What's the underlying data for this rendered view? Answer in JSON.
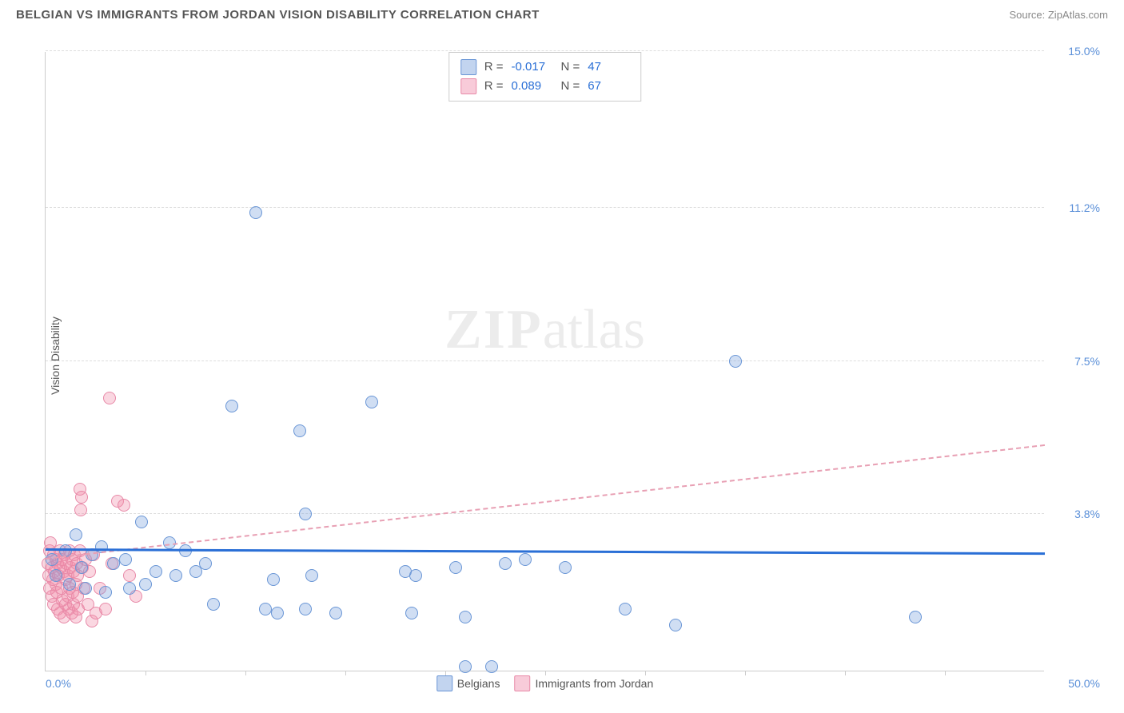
{
  "title": "BELGIAN VS IMMIGRANTS FROM JORDAN VISION DISABILITY CORRELATION CHART",
  "source": "Source: ZipAtlas.com",
  "watermark_a": "ZIP",
  "watermark_b": "atlas",
  "y_axis_label": "Vision Disability",
  "chart": {
    "type": "scatter",
    "background_color": "#ffffff",
    "grid_color": "#dddddd",
    "axis_color": "#cccccc",
    "xlim": [
      0,
      50
    ],
    "ylim": [
      0,
      15
    ],
    "x_start_label": "0.0%",
    "x_end_label": "50.0%",
    "y_ticks": [
      {
        "v": 3.8,
        "label": "3.8%"
      },
      {
        "v": 7.5,
        "label": "7.5%"
      },
      {
        "v": 11.2,
        "label": "11.2%"
      },
      {
        "v": 15.0,
        "label": "15.0%"
      }
    ],
    "x_tick_step": 5,
    "marker_size": 16,
    "series": {
      "belgians": {
        "label": "Belgians",
        "color_fill": "rgba(120,160,220,0.35)",
        "color_stroke": "#6a96d6",
        "r_label": "R =",
        "r_value": "-0.017",
        "n_label": "N =",
        "n_value": "47",
        "trend": {
          "slope": -0.002,
          "intercept": 2.9,
          "color": "#2a6fd6",
          "style": "solid",
          "width": 3
        },
        "points": [
          [
            0.3,
            2.7
          ],
          [
            0.5,
            2.3
          ],
          [
            1.0,
            2.9
          ],
          [
            1.2,
            2.1
          ],
          [
            1.5,
            3.3
          ],
          [
            1.8,
            2.5
          ],
          [
            2.0,
            2.0
          ],
          [
            2.3,
            2.8
          ],
          [
            2.8,
            3.0
          ],
          [
            3.0,
            1.9
          ],
          [
            3.4,
            2.6
          ],
          [
            4.0,
            2.7
          ],
          [
            4.2,
            2.0
          ],
          [
            4.8,
            3.6
          ],
          [
            5.0,
            2.1
          ],
          [
            5.5,
            2.4
          ],
          [
            6.2,
            3.1
          ],
          [
            6.5,
            2.3
          ],
          [
            7.0,
            2.9
          ],
          [
            7.5,
            2.4
          ],
          [
            8.0,
            2.6
          ],
          [
            8.4,
            1.6
          ],
          [
            9.3,
            6.4
          ],
          [
            10.5,
            11.1
          ],
          [
            11.0,
            1.5
          ],
          [
            11.4,
            2.2
          ],
          [
            11.6,
            1.4
          ],
          [
            12.7,
            5.8
          ],
          [
            13.0,
            1.5
          ],
          [
            13.0,
            3.8
          ],
          [
            13.3,
            2.3
          ],
          [
            14.5,
            1.4
          ],
          [
            16.3,
            6.5
          ],
          [
            18.0,
            2.4
          ],
          [
            18.3,
            1.4
          ],
          [
            18.5,
            2.3
          ],
          [
            20.5,
            2.5
          ],
          [
            21.0,
            0.1
          ],
          [
            21.0,
            1.3
          ],
          [
            22.3,
            0.1
          ],
          [
            23.0,
            2.6
          ],
          [
            26.0,
            2.5
          ],
          [
            29.0,
            1.5
          ],
          [
            31.5,
            1.1
          ],
          [
            34.5,
            7.5
          ],
          [
            43.5,
            1.3
          ],
          [
            24.0,
            2.7
          ]
        ]
      },
      "jordan": {
        "label": "Immigrants from Jordan",
        "color_fill": "rgba(240,140,170,0.35)",
        "color_stroke": "#e88aa8",
        "r_label": "R =",
        "r_value": "0.089",
        "n_label": "N =",
        "n_value": "67",
        "trend": {
          "slope": 0.055,
          "intercept": 2.7,
          "color": "#e8a0b4",
          "style": "dashed",
          "width": 2
        },
        "points": [
          [
            0.1,
            2.6
          ],
          [
            0.15,
            2.3
          ],
          [
            0.2,
            2.9
          ],
          [
            0.2,
            2.0
          ],
          [
            0.25,
            3.1
          ],
          [
            0.3,
            1.8
          ],
          [
            0.3,
            2.5
          ],
          [
            0.35,
            2.2
          ],
          [
            0.4,
            2.8
          ],
          [
            0.4,
            1.6
          ],
          [
            0.45,
            2.4
          ],
          [
            0.5,
            2.1
          ],
          [
            0.5,
            2.7
          ],
          [
            0.55,
            1.9
          ],
          [
            0.6,
            2.6
          ],
          [
            0.6,
            1.5
          ],
          [
            0.65,
            2.3
          ],
          [
            0.7,
            2.9
          ],
          [
            0.7,
            1.4
          ],
          [
            0.75,
            2.5
          ],
          [
            0.8,
            2.0
          ],
          [
            0.8,
            2.7
          ],
          [
            0.85,
            1.7
          ],
          [
            0.9,
            2.4
          ],
          [
            0.9,
            1.3
          ],
          [
            0.95,
            2.8
          ],
          [
            1.0,
            2.2
          ],
          [
            1.0,
            1.6
          ],
          [
            1.05,
            2.6
          ],
          [
            1.1,
            1.8
          ],
          [
            1.1,
            2.3
          ],
          [
            1.15,
            1.5
          ],
          [
            1.2,
            2.9
          ],
          [
            1.2,
            2.0
          ],
          [
            1.25,
            2.5
          ],
          [
            1.3,
            1.4
          ],
          [
            1.3,
            2.7
          ],
          [
            1.35,
            1.9
          ],
          [
            1.4,
            2.4
          ],
          [
            1.4,
            1.6
          ],
          [
            1.45,
            2.8
          ],
          [
            1.5,
            2.1
          ],
          [
            1.5,
            1.3
          ],
          [
            1.55,
            2.6
          ],
          [
            1.6,
            1.8
          ],
          [
            1.6,
            2.3
          ],
          [
            1.65,
            1.5
          ],
          [
            1.7,
            2.9
          ],
          [
            1.7,
            4.4
          ],
          [
            1.75,
            3.9
          ],
          [
            1.8,
            4.2
          ],
          [
            1.85,
            2.5
          ],
          [
            1.9,
            2.0
          ],
          [
            2.0,
            2.7
          ],
          [
            2.1,
            1.6
          ],
          [
            2.2,
            2.4
          ],
          [
            2.3,
            1.2
          ],
          [
            2.4,
            2.8
          ],
          [
            2.5,
            1.4
          ],
          [
            2.7,
            2.0
          ],
          [
            3.0,
            1.5
          ],
          [
            3.2,
            6.6
          ],
          [
            3.3,
            2.6
          ],
          [
            3.6,
            4.1
          ],
          [
            3.9,
            4.0
          ],
          [
            4.2,
            2.3
          ],
          [
            4.5,
            1.8
          ]
        ]
      }
    }
  }
}
